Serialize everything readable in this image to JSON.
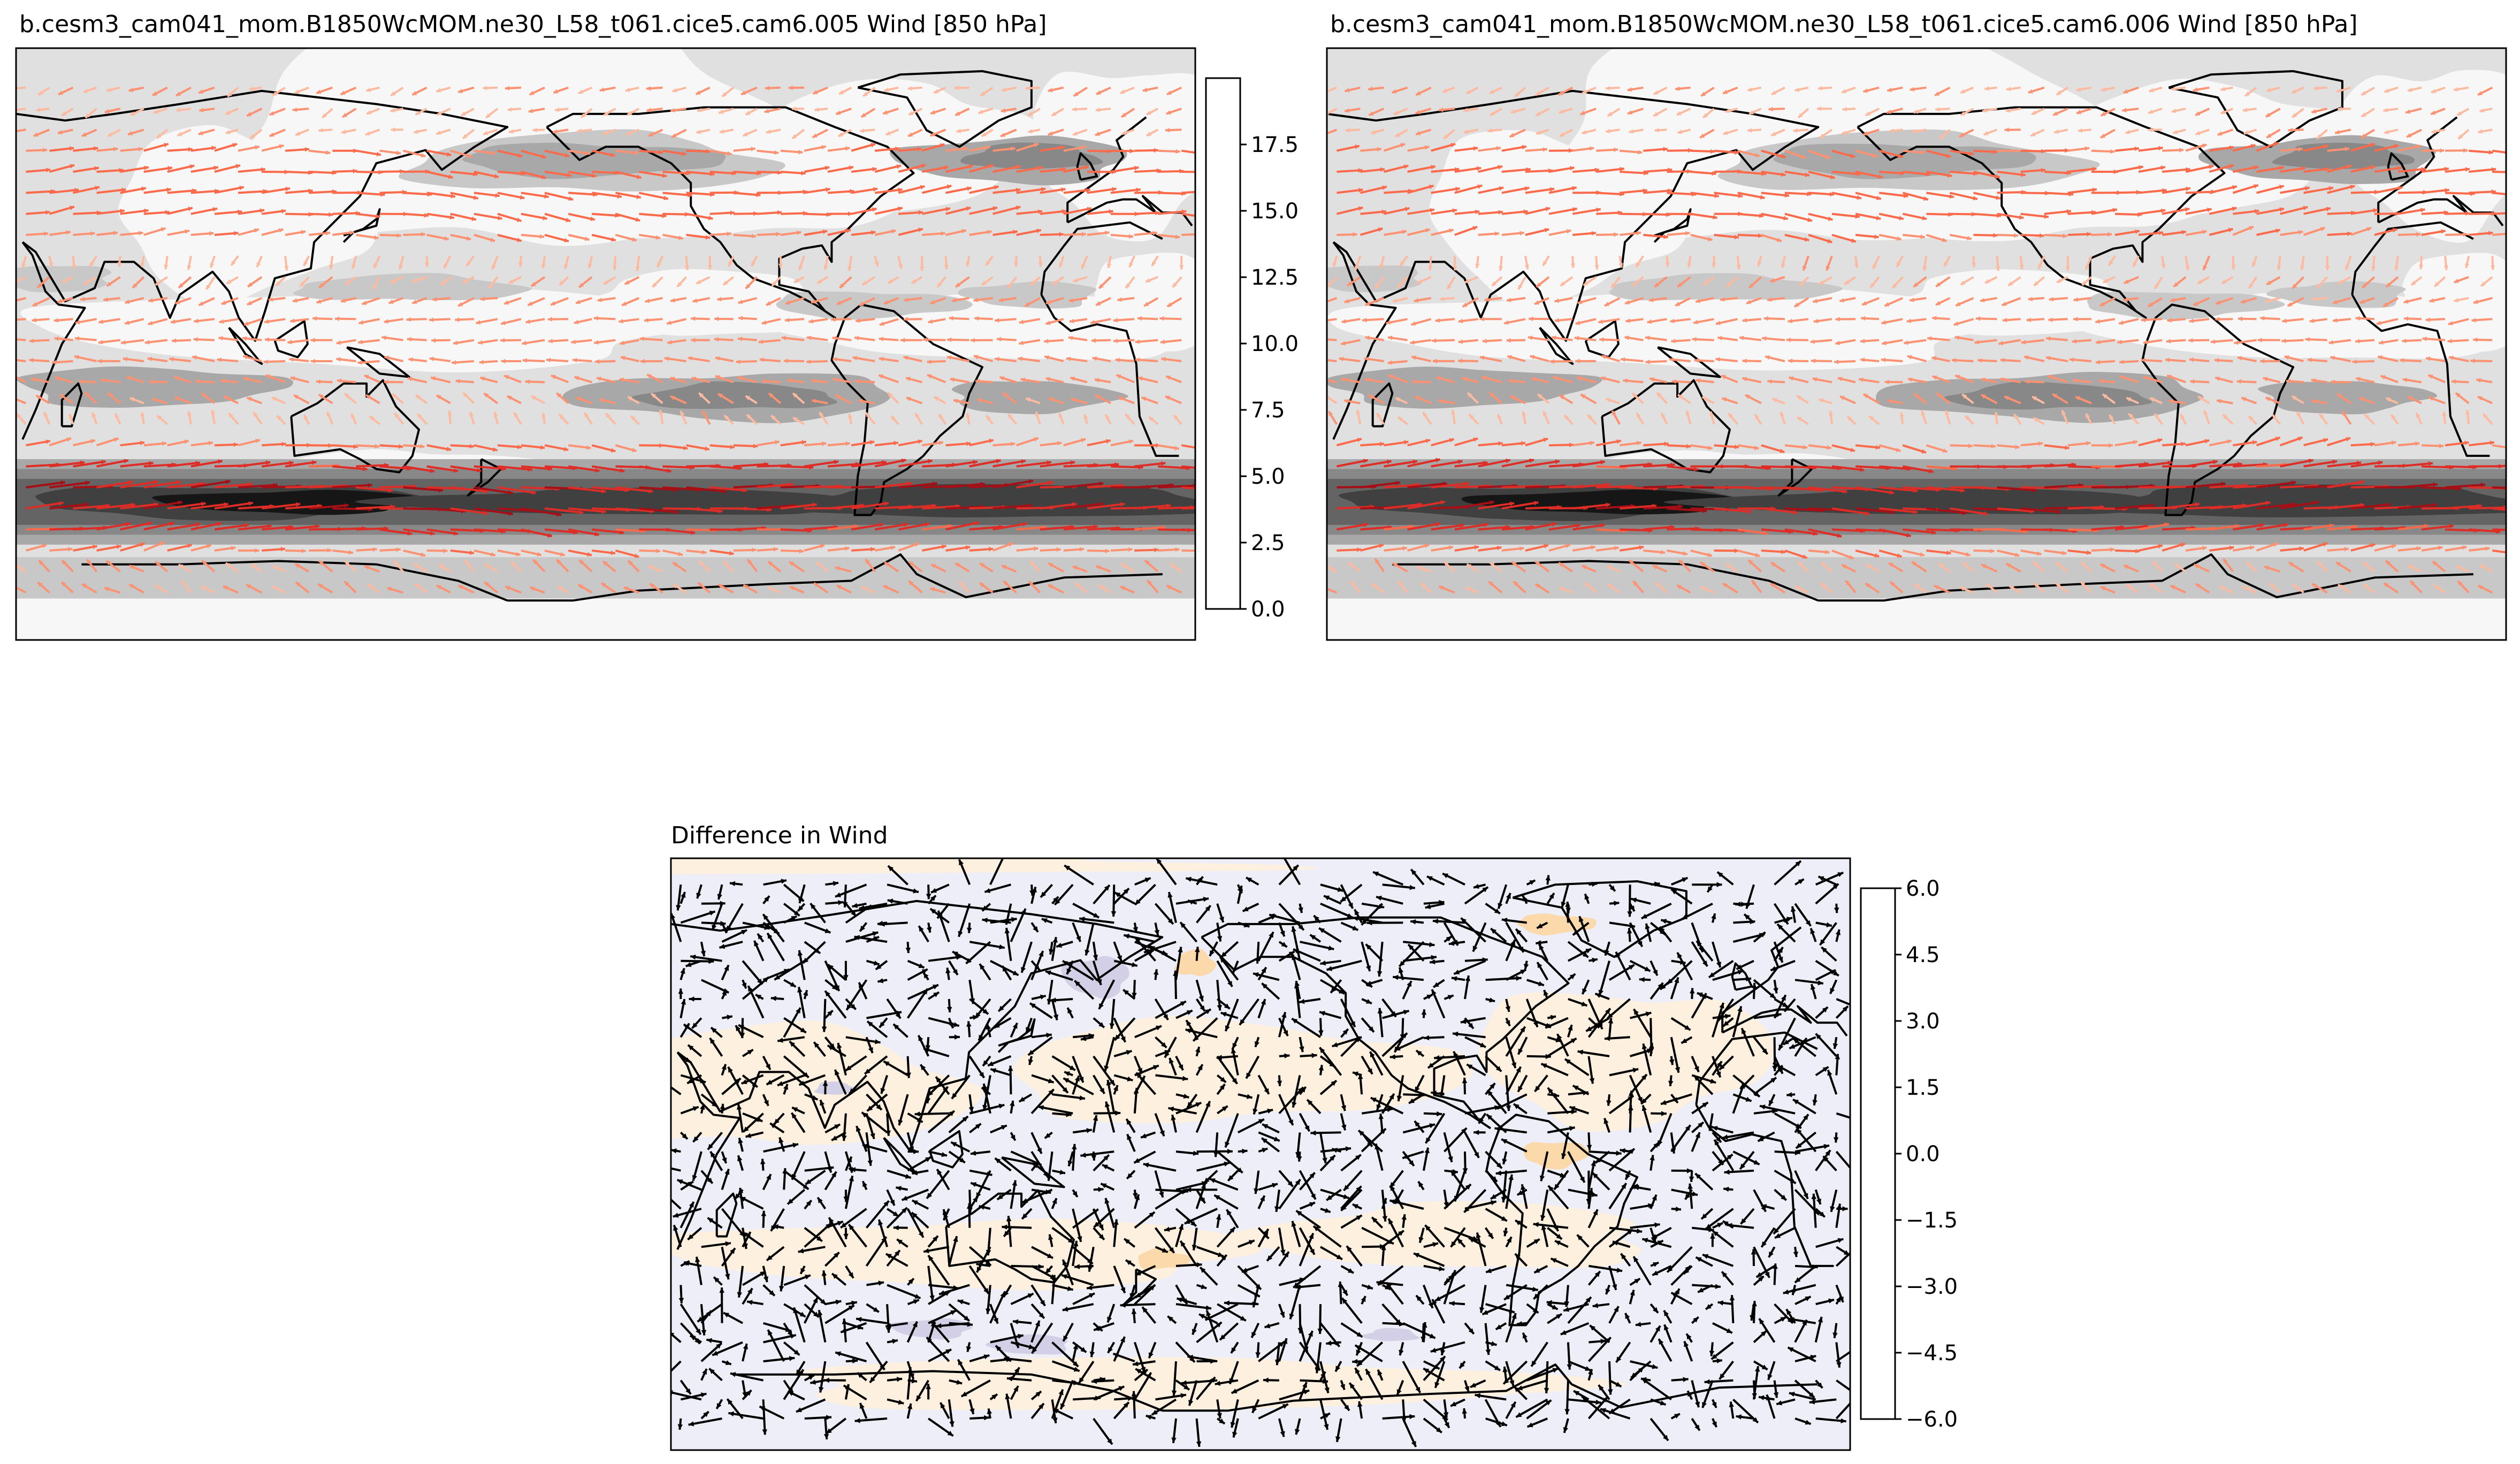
{
  "figure": {
    "panels": [
      {
        "key": "a",
        "title": "b.cesm3_cam041_mom.B1850WcMOM.ne30_L58_t061.cice5.cam6.005 Wind [850 hPa]",
        "colorbar": {
          "levels": [
            0.0,
            2.5,
            5.0,
            7.5,
            10.0,
            12.5,
            15.0,
            17.5
          ],
          "tick_labels": [
            "0.0",
            "2.5",
            "5.0",
            "7.5",
            "10.0",
            "12.5",
            "15.0",
            "17.5"
          ],
          "colors": [
            "#f7f7f7",
            "#e0e0e0",
            "#c8c8c8",
            "#a8a8a8",
            "#888888",
            "#646464",
            "#404040",
            "#161616"
          ]
        },
        "vector_colors": [
          "#fcbba1",
          "#fc9272",
          "#fb6a4a",
          "#de2d26",
          "#a50f15"
        ]
      },
      {
        "key": "b",
        "title": "b.cesm3_cam041_mom.B1850WcMOM.ne30_L58_t061.cice5.cam6.006 Wind [850 hPa]",
        "vector_colors": [
          "#fcbba1",
          "#fc9272",
          "#fb6a4a",
          "#de2d26",
          "#a50f15"
        ]
      },
      {
        "key": "d",
        "title": "Difference in Wind",
        "colorbar": {
          "levels": [
            -6.0,
            -4.5,
            -3.0,
            -1.5,
            0.0,
            1.5,
            3.0,
            4.5,
            6.0
          ],
          "tick_labels": [
            "−6.0",
            "−4.5",
            "−3.0",
            "−1.5",
            "0.0",
            "1.5",
            "3.0",
            "4.5",
            "6.0"
          ],
          "colors": [
            "#c49a7b",
            "#e8b487",
            "#fbd9ab",
            "#fdf0de",
            "#eeeef8",
            "#d3cfe6",
            "#ab98cc",
            "#8c7ca6"
          ]
        },
        "vector_color": "#000000"
      }
    ]
  }
}
